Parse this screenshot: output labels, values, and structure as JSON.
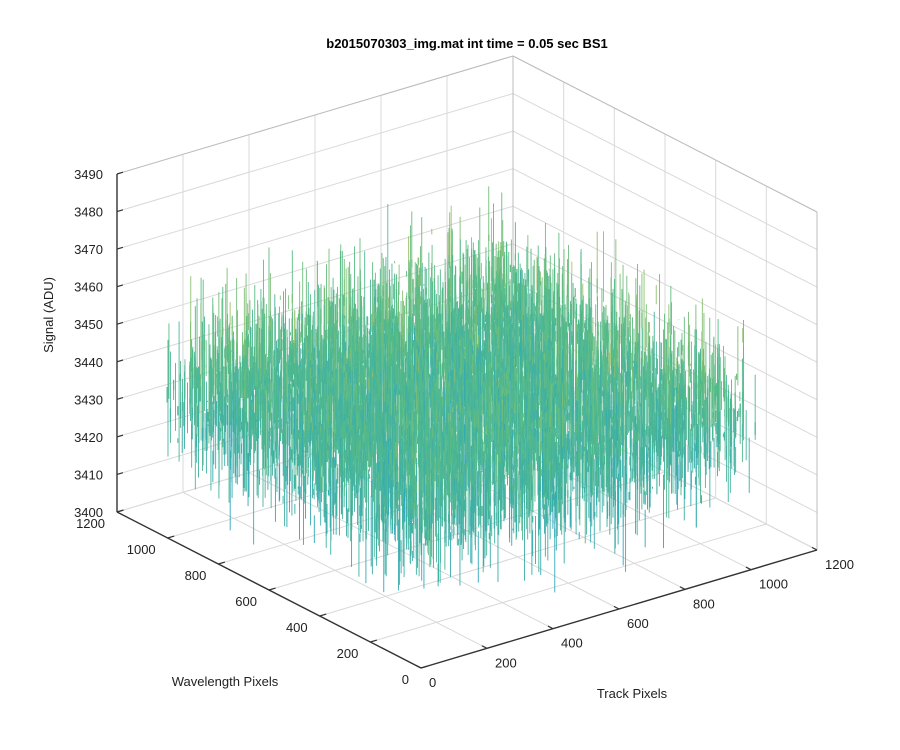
{
  "chart_data": {
    "type": "surface",
    "title": "b2015070303_img.mat int time = 0.05 sec   BS1",
    "xlabel": "Track Pixels",
    "ylabel": "Wavelength Pixels",
    "zlabel": "Signal (ADU)",
    "x_ticks": [
      "0",
      "200",
      "400",
      "600",
      "800",
      "1000",
      "1200"
    ],
    "y_ticks": [
      "0",
      "200",
      "400",
      "600",
      "800",
      "1000",
      "1200"
    ],
    "z_ticks": [
      "3400",
      "3410",
      "3420",
      "3430",
      "3440",
      "3450",
      "3460",
      "3470",
      "3480",
      "3490"
    ],
    "xlim": [
      0,
      1200
    ],
    "ylim": [
      0,
      1200
    ],
    "zlim": [
      3400,
      3490
    ],
    "data_extent": {
      "x": [
        0,
        1024
      ],
      "y": [
        0,
        1024
      ]
    },
    "z_mean": 3440,
    "z_noise_range": [
      3410,
      3480
    ],
    "grid": true,
    "colors": {
      "low": "#1f9fd0",
      "mid": "#55bb88",
      "high": "#e8c84a",
      "grid": "#d9d9d9",
      "axis": "#333333"
    }
  }
}
